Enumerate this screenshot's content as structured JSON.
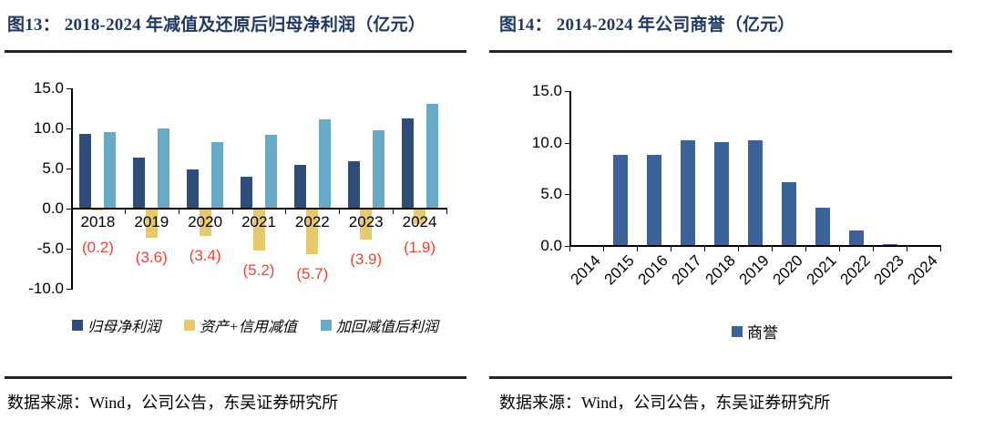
{
  "panels": [
    {
      "title": "图13： 2018-2024 年减值及还原后归母净利润（亿元）",
      "source": "数据来源：Wind，公司公告，东吴证券研究所"
    },
    {
      "title": "图14： 2014-2024 年公司商誉（亿元）",
      "source": "数据来源：Wind，公司公告，东吴证券研究所"
    }
  ],
  "colors": {
    "title": "#1F3864",
    "rule": "#232323",
    "axis": "#000000",
    "data_label_red": "#FA3D2E",
    "net_profit_blue": "#2E4D7B",
    "impairment_yellow": "#E6C86E",
    "restored_lightblue": "#68AAC6",
    "goodwill_blue": "#3C6398"
  },
  "chart_data": [
    {
      "type": "bar",
      "title": "图13： 2018-2024 年减值及还原后归母净利润（亿元）",
      "categories": [
        "2018",
        "2019",
        "2020",
        "2021",
        "2022",
        "2023",
        "2024"
      ],
      "series": [
        {
          "name": "归母净利润",
          "color": "#2E4D7B",
          "values": [
            9.3,
            6.4,
            4.9,
            4.0,
            5.4,
            5.9,
            11.2
          ]
        },
        {
          "name": "资产+信用减值",
          "color": "#E6C86E",
          "values": [
            -0.2,
            -3.6,
            -3.4,
            -5.2,
            -5.7,
            -3.9,
            -1.9
          ]
        },
        {
          "name": "加回减值后利润",
          "color": "#68AAC6",
          "values": [
            9.5,
            10.0,
            8.3,
            9.2,
            11.1,
            9.8,
            13.1
          ]
        }
      ],
      "data_labels": [
        "(0.2)",
        "(3.6)",
        "(3.4)",
        "(5.2)",
        "(5.7)",
        "(3.9)",
        "(1.9)"
      ],
      "data_label_color": "#FA3D2E",
      "ylim": [
        -10,
        15
      ],
      "yticks": [
        "15.0",
        "10.0",
        "5.0",
        "0.0",
        "-5.0",
        "-10.0"
      ],
      "ytick_values": [
        15,
        10,
        5,
        0,
        -5,
        -10
      ],
      "grid": false,
      "legend_position": "bottom"
    },
    {
      "type": "bar",
      "title": "图14： 2014-2024 年公司商誉（亿元）",
      "categories": [
        "2014",
        "2015",
        "2016",
        "2017",
        "2018",
        "2019",
        "2020",
        "2021",
        "2022",
        "2023",
        "2024"
      ],
      "series": [
        {
          "name": "商誉",
          "color": "#3C6398",
          "values": [
            0,
            8.8,
            8.8,
            10.2,
            10.1,
            10.2,
            6.2,
            3.7,
            1.5,
            0.2,
            0
          ]
        }
      ],
      "ylim": [
        0,
        15
      ],
      "yticks": [
        "15.0",
        "10.0",
        "5.0",
        "0.0"
      ],
      "ytick_values": [
        15,
        10,
        5,
        0
      ],
      "xtick_rotation": 45,
      "grid": false,
      "legend_position": "bottom"
    }
  ]
}
